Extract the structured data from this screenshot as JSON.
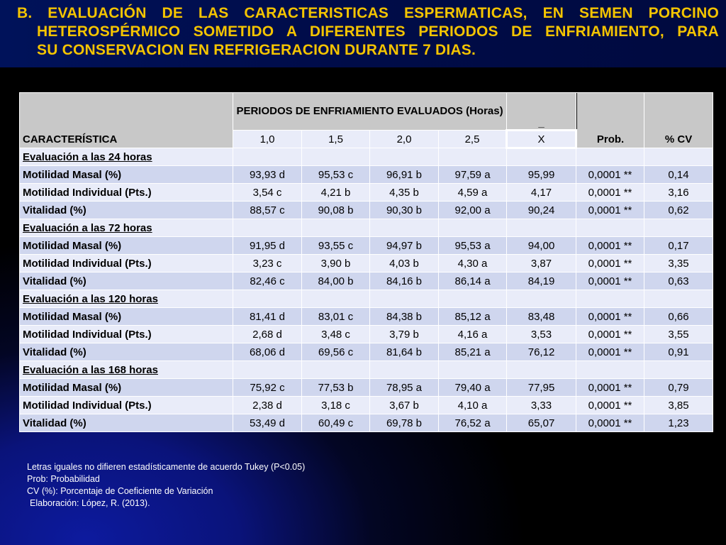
{
  "title": {
    "line1": "B. EVALUACIÓN DE LAS CARACTERISTICAS ESPERMATICAS, EN SEMEN PORCINO",
    "line2": "HETEROSPÉRMICO SOMETIDO A DIFERENTES PERIODOS DE ENFRIAMIENTO, PARA",
    "line3": "SU CONSERVACION EN REFRIGERACION DURANTE 7 DIAS."
  },
  "table": {
    "col_caracteristica": "CARACTERÍSTICA",
    "col_group": "PERIODOS DE ENFRIAMIENTO EVALUADOS (Horas)",
    "periods": [
      "1,0",
      "1,5",
      "2,0",
      "2,5"
    ],
    "mean_bar": "_",
    "mean_label": "X",
    "prob_label": "Prob.",
    "cv_label": "% CV",
    "sections": [
      {
        "title": "Evaluación a las 24 horas",
        "rows": [
          {
            "label": "Motilidad Masal (%)",
            "values": [
              "93,93 d",
              "95,53 c",
              "96,91 b",
              "97,59 a"
            ],
            "mean": "95,99",
            "prob": "0,0001 **",
            "cv": "0,14"
          },
          {
            "label": "Motilidad Individual (Pts.)",
            "values": [
              "3,54 c",
              "4,21 b",
              "4,35 b",
              "4,59 a"
            ],
            "mean": "4,17",
            "prob": "0,0001 **",
            "cv": "3,16"
          },
          {
            "label": "Vitalidad (%)",
            "values": [
              "88,57 c",
              "90,08 b",
              "90,30 b",
              "92,00 a"
            ],
            "mean": "90,24",
            "prob": "0,0001 **",
            "cv": "0,62"
          }
        ]
      },
      {
        "title": "Evaluación a las 72 horas",
        "rows": [
          {
            "label": "Motilidad Masal (%)",
            "values": [
              "91,95 d",
              "93,55 c",
              "94,97 b",
              "95,53 a"
            ],
            "mean": "94,00",
            "prob": "0,0001 **",
            "cv": "0,17"
          },
          {
            "label": "Motilidad Individual (Pts.)",
            "values": [
              "3,23 c",
              "3,90 b",
              "4,03 b",
              "4,30 a"
            ],
            "mean": "3,87",
            "prob": "0,0001 **",
            "cv": "3,35"
          },
          {
            "label": "Vitalidad (%)",
            "values": [
              "82,46 c",
              "84,00 b",
              "84,16 b",
              "86,14 a"
            ],
            "mean": "84,19",
            "prob": "0,0001 **",
            "cv": "0,63"
          }
        ]
      },
      {
        "title": "Evaluación a las 120 horas",
        "rows": [
          {
            "label": "Motilidad Masal (%)",
            "values": [
              "81,41 d",
              "83,01 c",
              "84,38 b",
              "85,12 a"
            ],
            "mean": "83,48",
            "prob": "0,0001 **",
            "cv": "0,66"
          },
          {
            "label": "Motilidad Individual (Pts.)",
            "values": [
              "2,68 d",
              "3,48 c",
              "3,79 b",
              "4,16 a"
            ],
            "mean": "3,53",
            "prob": "0,0001 **",
            "cv": "3,55"
          },
          {
            "label": "Vitalidad (%)",
            "values": [
              "68,06 d",
              "69,56 c",
              "81,64 b",
              "85,21 a"
            ],
            "mean": "76,12",
            "prob": "0,0001 **",
            "cv": "0,91"
          }
        ]
      },
      {
        "title": "Evaluación a las 168 horas",
        "rows": [
          {
            "label": "Motilidad Masal (%)",
            "values": [
              "75,92 c",
              "77,53 b",
              "78,95 a",
              "79,40 a"
            ],
            "mean": "77,95",
            "prob": "0,0001 **",
            "cv": "0,79"
          },
          {
            "label": "Motilidad Individual (Pts.)",
            "values": [
              "2,38 d",
              "3,18 c",
              "3,67 b",
              "4,10 a"
            ],
            "mean": "3,33",
            "prob": "0,0001 **",
            "cv": "3,85"
          },
          {
            "label": "Vitalidad (%)",
            "values": [
              "53,49 d",
              "60,49 c",
              "69,78 b",
              "76,52 a"
            ],
            "mean": "65,07",
            "prob": "0,0001 **",
            "cv": "1,23"
          }
        ]
      }
    ]
  },
  "notes": [
    "Letras iguales no difieren estadísticamente de acuerdo Tukey (P<0.05)",
    "Prob: Probabilidad",
    "CV (%): Porcentaje de Coeficiente de Variación",
    "Elaboración: López, R. (2013)."
  ],
  "colors": {
    "title": "#f4c400",
    "header_bg": "#c8c8c8",
    "row_dark": "#cfd6ee",
    "row_light": "#e9ecf9"
  }
}
